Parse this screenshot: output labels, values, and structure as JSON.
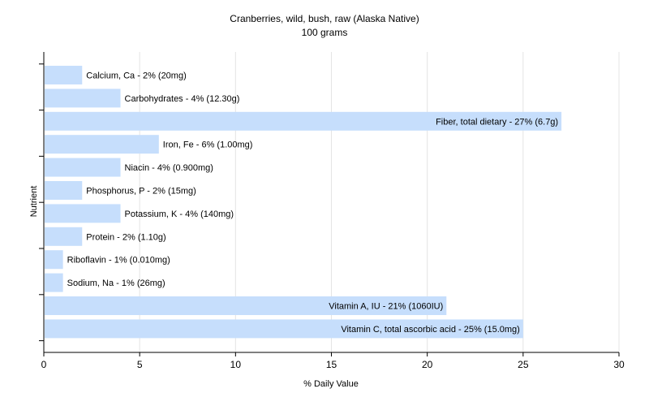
{
  "chart_data": {
    "type": "bar",
    "orientation": "horizontal",
    "title": "Cranberries, wild, bush, raw (Alaska Native)",
    "subtitle": "100 grams",
    "xlabel": "% Daily Value",
    "ylabel": "Nutrient",
    "xlim": [
      0,
      30
    ],
    "xticks": [
      0,
      5,
      10,
      15,
      20,
      25,
      30
    ],
    "grid": true,
    "bar_color": "#c6defc",
    "categories": [
      "Calcium, Ca",
      "Carbohydrates",
      "Fiber, total dietary",
      "Iron, Fe",
      "Niacin",
      "Phosphorus, P",
      "Potassium, K",
      "Protein",
      "Riboflavin",
      "Sodium, Na",
      "Vitamin A, IU",
      "Vitamin C, total ascorbic acid"
    ],
    "values": [
      2,
      4,
      27,
      6,
      4,
      2,
      4,
      2,
      1,
      1,
      21,
      25
    ],
    "labels": [
      "Calcium, Ca - 2% (20mg)",
      "Carbohydrates - 4% (12.30g)",
      "Fiber, total dietary - 27% (6.7g)",
      "Iron, Fe - 6% (1.00mg)",
      "Niacin - 4% (0.900mg)",
      "Phosphorus, P - 2% (15mg)",
      "Potassium, K - 4% (140mg)",
      "Protein - 2% (1.10g)",
      "Riboflavin - 1% (0.010mg)",
      "Sodium, Na - 1% (26mg)",
      "Vitamin A, IU - 21% (1060IU)",
      "Vitamin C, total ascorbic acid - 25% (15.0mg)"
    ]
  }
}
